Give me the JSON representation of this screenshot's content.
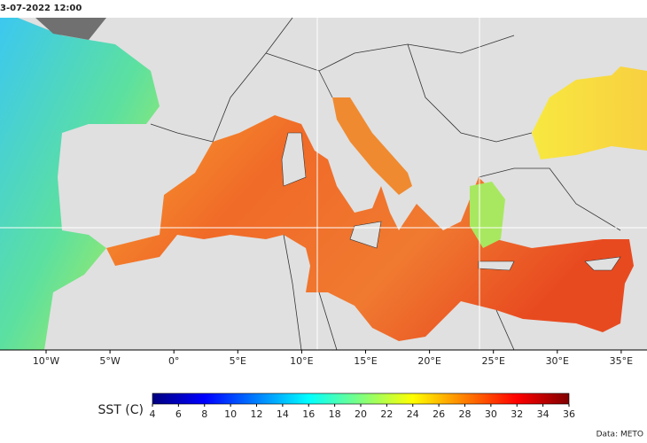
{
  "title": "3-07-2022  12:00",
  "lon_labels": [
    "10°W",
    "5°W",
    "0°",
    "5°E",
    "10°E",
    "15°E",
    "20°E",
    "25°E",
    "30°E",
    "35°E"
  ],
  "colorbar": {
    "label": "SST (C)",
    "range": [
      4,
      36
    ],
    "ticks": [
      4,
      6,
      8,
      10,
      12,
      14,
      16,
      18,
      20,
      22,
      24,
      26,
      28,
      30,
      32,
      34,
      36
    ],
    "colors": [
      "#00007f",
      "#0000ff",
      "#007fff",
      "#00ffff",
      "#7fff7f",
      "#ffff00",
      "#ff7f00",
      "#ff0000",
      "#7f0000"
    ]
  },
  "credit": "Data: METO"
}
